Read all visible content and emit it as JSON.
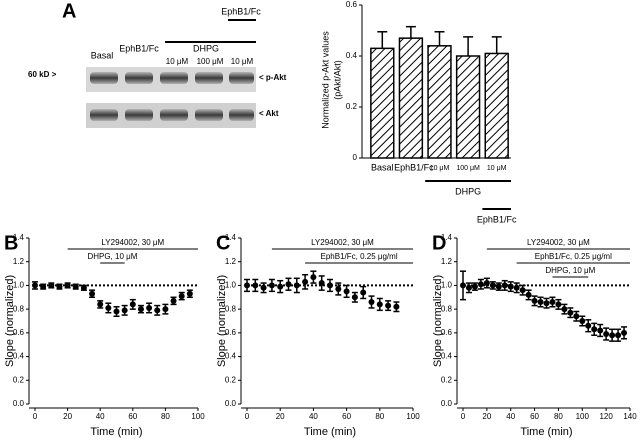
{
  "blot": {
    "panel": "A",
    "basal": "Basal",
    "ephb1": "EphB1/Fc",
    "dhpg": "DHPG",
    "conc1": "10 μM",
    "conc2": "100 μM",
    "conc3": "10 μM",
    "ephb1_top": "EphB1/Fc",
    "marker": "60 kD >",
    "pakt": "< p-Akt",
    "akt": "< Akt"
  },
  "chart_data": [
    {
      "type": "bar",
      "ylabel": [
        "Normalized p-Akt values",
        "(pAkt/Akt)"
      ],
      "categories": [
        "Basal",
        "EphB1/Fc",
        "10 μM",
        "100 μM",
        "10 μM"
      ],
      "values": [
        0.43,
        0.47,
        0.44,
        0.4,
        0.41
      ],
      "errors": [
        0.065,
        0.045,
        0.055,
        0.075,
        0.065
      ],
      "groups": [
        "DHPG",
        "EphB1/Fc"
      ],
      "color": "#000000",
      "hatch": true,
      "ylim": [
        0,
        0.6
      ],
      "yticks": [
        0,
        0.2,
        0.4,
        0.6
      ]
    },
    {
      "type": "scatter",
      "title": "B",
      "xlabel": "Time (min)",
      "ylabel": "Slope (normalized)",
      "x": [
        0,
        5,
        10,
        15,
        20,
        25,
        30,
        35,
        40,
        45,
        50,
        55,
        60,
        65,
        70,
        75,
        80,
        85,
        90,
        95
      ],
      "series": [
        {
          "color": "#000000",
          "values": [
            1.0,
            0.99,
            1.0,
            0.99,
            1.0,
            0.99,
            0.98,
            0.93,
            0.84,
            0.81,
            0.78,
            0.79,
            0.84,
            0.8,
            0.81,
            0.79,
            0.8,
            0.87,
            0.91,
            0.93
          ],
          "errors": [
            0.03,
            0.02,
            0.02,
            0.02,
            0.02,
            0.02,
            0.02,
            0.03,
            0.03,
            0.04,
            0.04,
            0.04,
            0.04,
            0.03,
            0.04,
            0.04,
            0.04,
            0.03,
            0.03,
            0.03
          ]
        }
      ],
      "reference_line": 1,
      "annotations": [
        {
          "text": "LY294002, 30 μM",
          "x": [
            20,
            100
          ]
        },
        {
          "text": "DHPG, 10 μM",
          "x": [
            40,
            55
          ]
        }
      ],
      "xlim": [
        0,
        100
      ],
      "xticks": [
        0,
        20,
        40,
        60,
        80,
        100
      ],
      "ylim": [
        0,
        1.4
      ],
      "yticks": [
        {
          "value": 0,
          "label": "0.0"
        },
        0.2,
        0.4,
        0.6,
        0.8,
        {
          "value": 1,
          "label": "1.0"
        },
        1.2,
        1.4
      ]
    },
    {
      "type": "scatter",
      "title": "C",
      "xlabel": "Time (min)",
      "ylabel": "Slope (normalized)",
      "x": [
        0,
        5,
        10,
        15,
        20,
        25,
        30,
        35,
        40,
        45,
        50,
        55,
        60,
        65,
        70,
        75,
        80,
        85,
        90
      ],
      "series": [
        {
          "color": "#000000",
          "values": [
            1.0,
            1.0,
            0.98,
            1.0,
            0.99,
            1.01,
            1.0,
            1.03,
            1.07,
            1.02,
            1.0,
            0.97,
            0.95,
            0.9,
            0.94,
            0.86,
            0.84,
            0.83,
            0.82
          ],
          "errors": [
            0.05,
            0.05,
            0.04,
            0.05,
            0.05,
            0.05,
            0.06,
            0.06,
            0.05,
            0.06,
            0.05,
            0.05,
            0.05,
            0.04,
            0.05,
            0.05,
            0.05,
            0.04,
            0.04
          ]
        }
      ],
      "reference_line": 1,
      "annotations": [
        {
          "text": "LY294002, 30 μM",
          "x": [
            15,
            100
          ]
        },
        {
          "text": "EphB1/Fc, 0.25 μg/ml",
          "x": [
            35,
            100
          ]
        }
      ],
      "xlim": [
        0,
        100
      ],
      "xticks": [
        0,
        20,
        40,
        60,
        80,
        100
      ],
      "ylim": [
        0,
        1.4
      ],
      "yticks": [
        {
          "value": 0,
          "label": "0.0"
        },
        0.2,
        0.4,
        0.6,
        0.8,
        {
          "value": 1,
          "label": "1.0"
        },
        1.2,
        1.4
      ]
    },
    {
      "type": "scatter",
      "title": "D",
      "xlabel": "Time (min)",
      "ylabel": "Slope (normalized)",
      "x": [
        0,
        5,
        10,
        15,
        20,
        25,
        30,
        35,
        40,
        45,
        50,
        55,
        60,
        65,
        70,
        75,
        80,
        85,
        90,
        95,
        100,
        105,
        110,
        115,
        120,
        125,
        130,
        135
      ],
      "series": [
        {
          "color": "#000000",
          "values": [
            1.0,
            0.98,
            0.99,
            1.01,
            1.02,
            1.0,
            0.99,
            1.0,
            0.99,
            0.98,
            0.96,
            0.92,
            0.87,
            0.86,
            0.85,
            0.86,
            0.84,
            0.8,
            0.77,
            0.74,
            0.7,
            0.66,
            0.63,
            0.62,
            0.59,
            0.58,
            0.58,
            0.6
          ],
          "errors": [
            0.12,
            0.04,
            0.03,
            0.04,
            0.04,
            0.03,
            0.03,
            0.04,
            0.04,
            0.04,
            0.04,
            0.04,
            0.04,
            0.04,
            0.04,
            0.04,
            0.04,
            0.04,
            0.04,
            0.04,
            0.04,
            0.05,
            0.05,
            0.05,
            0.05,
            0.05,
            0.05,
            0.05
          ]
        }
      ],
      "reference_line": 1,
      "annotations": [
        {
          "text": "LY294002, 30 μM",
          "x": [
            20,
            140
          ]
        },
        {
          "text": "EphB1/Fc, 0.25 μg/ml",
          "x": [
            45,
            140
          ]
        },
        {
          "text": "DHPG, 10 μM",
          "x": [
            75,
            105
          ]
        }
      ],
      "xlim": [
        0,
        140
      ],
      "xticks": [
        0,
        20,
        40,
        60,
        80,
        100,
        120,
        140
      ],
      "ylim": [
        0,
        1.4
      ],
      "yticks": [
        {
          "value": 0,
          "label": "0.0"
        },
        0.2,
        0.4,
        0.6,
        0.8,
        {
          "value": 1,
          "label": "1.0"
        },
        1.2,
        1.4
      ]
    }
  ]
}
